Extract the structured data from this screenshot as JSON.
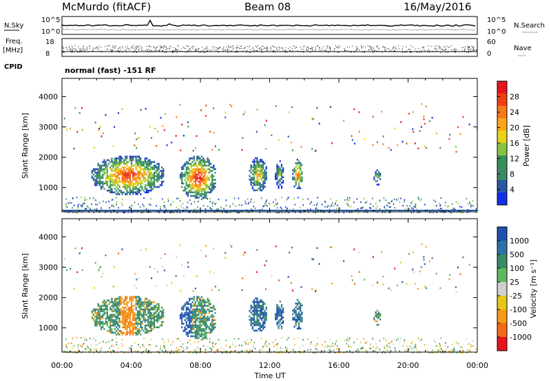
{
  "header": {
    "station": "McMurdo (fitACF)",
    "beam": "Beam 08",
    "date": "16/May/2016"
  },
  "strip_labels": {
    "nsky": "N.Sky",
    "nsearch": "N.Search",
    "nsearch_dots": "········",
    "freq": "Freq.",
    "mhz": "[MHz]",
    "nave": "Nave",
    "nave_dots": "····",
    "cpid": "CPID",
    "cpid_text": "normal (fast) -151 RF",
    "noise_left_ticks": [
      "10^5",
      "10^0"
    ],
    "noise_right_ticks": [
      "10^5",
      "10^0"
    ],
    "freq_ticks": [
      "18",
      "8"
    ],
    "nave_ticks": [
      "60",
      "0"
    ]
  },
  "colorbars": {
    "power": {
      "label": "Power [dB]",
      "ticks": [
        "28",
        "24",
        "20",
        "16",
        "12",
        "8",
        "4"
      ],
      "colors": [
        "#e8141c",
        "#f04018",
        "#f57a18",
        "#f9a51a",
        "#e8d21a",
        "#86c342",
        "#37905a",
        "#3c8a63",
        "#2a56a4",
        "#1030e8"
      ]
    },
    "velocity": {
      "label": "Velocity [m s⁻¹]",
      "ticks": [
        "1000",
        "500",
        "100",
        "25",
        "-25",
        "-100",
        "-500",
        "-1000"
      ],
      "colors": [
        "#2050b0",
        "#2f70a8",
        "#3a8a65",
        "#5cb85a",
        "#cfcfcf",
        "#e8c61a",
        "#f59a18",
        "#f26a18",
        "#e8141c"
      ]
    }
  },
  "chart_data": [
    {
      "type": "heatmap",
      "name": "power",
      "xlabel": "Time UT",
      "ylabel": "Slant Range [km]",
      "x_range": [
        "00:00",
        "24:00"
      ],
      "ylim": [
        200,
        4600
      ],
      "yticks": [
        "4000",
        "3000",
        "2000",
        "1000"
      ],
      "xticks": [
        "00:00",
        "04:00",
        "08:00",
        "12:00",
        "16:00",
        "20:00",
        "00:00"
      ],
      "colorbar_label": "Power [dB]",
      "colorbar_range": [
        0,
        30
      ],
      "echo_regions": [
        {
          "t_start_h": 1.7,
          "t_end_h": 5.9,
          "range_min_km": 800,
          "range_max_km": 2050,
          "peak_db": 28
        },
        {
          "t_start_h": 6.8,
          "t_end_h": 8.9,
          "range_min_km": 650,
          "range_max_km": 2050,
          "peak_db": 30
        },
        {
          "t_start_h": 10.8,
          "t_end_h": 11.8,
          "range_min_km": 900,
          "range_max_km": 2000,
          "peak_db": 20
        },
        {
          "t_start_h": 12.3,
          "t_end_h": 12.8,
          "range_min_km": 1000,
          "range_max_km": 1900,
          "peak_db": 14
        },
        {
          "t_start_h": 13.3,
          "t_end_h": 13.9,
          "range_min_km": 950,
          "range_max_km": 1950,
          "peak_db": 26
        },
        {
          "t_start_h": 18.0,
          "t_end_h": 18.4,
          "range_min_km": 1100,
          "range_max_km": 1600,
          "peak_db": 18
        }
      ]
    },
    {
      "type": "heatmap",
      "name": "velocity",
      "xlabel": "Time UT",
      "ylabel": "Slant Range [km]",
      "x_range": [
        "00:00",
        "24:00"
      ],
      "ylim": [
        200,
        4600
      ],
      "yticks": [
        "4000",
        "3000",
        "2000",
        "1000"
      ],
      "xticks": [
        "00:00",
        "04:00",
        "08:00",
        "12:00",
        "16:00",
        "20:00",
        "00:00"
      ],
      "colorbar_label": "Velocity [m s⁻¹]",
      "colorbar_range": [
        -1000,
        1000
      ]
    }
  ],
  "xaxis_label": "Time UT",
  "xtick_labels": [
    "00:00",
    "04:00",
    "08:00",
    "12:00",
    "16:00",
    "20:00",
    "00:00"
  ]
}
